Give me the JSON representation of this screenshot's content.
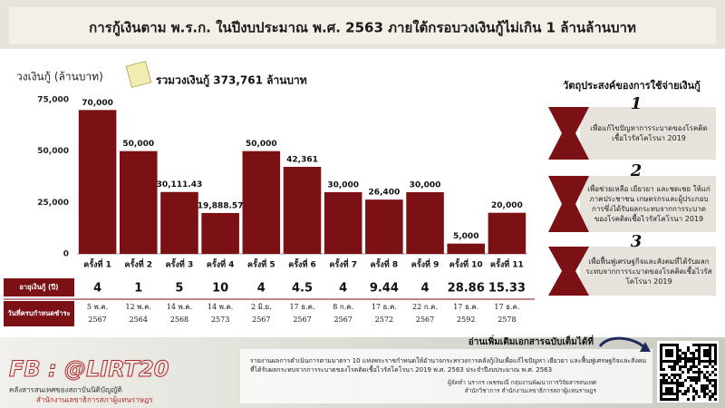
{
  "header": {
    "title": "การกู้เงินตาม พ.ร.ก. ในปีงบประมาณ พ.ศ. 2563 ภายใต้กรอบวงเงินกู้ไม่เกิน 1 ล้านล้านบาท"
  },
  "chart_data": {
    "type": "bar",
    "y_label": "วงเงินกู้ (ล้านบาท)",
    "annotation": "รวมวงเงินกู้ 373,761 ล้านบาท",
    "categories": [
      "ครั้งที่ 1",
      "ครั้งที่ 2",
      "ครั้งที่ 3",
      "ครั้งที่ 4",
      "ครั้งที่ 5",
      "ครั้งที่ 6",
      "ครั้งที่ 7",
      "ครั้งที่ 8",
      "ครั้งที่ 9",
      "ครั้งที่ 10",
      "ครั้งที่ 11"
    ],
    "values": [
      70000,
      50000,
      30111.43,
      19888.57,
      50000,
      42361,
      30000,
      26400,
      30000,
      5000,
      20000
    ],
    "value_labels": [
      "70,000",
      "50,000",
      "30,111.43",
      "19,888.57",
      "50,000",
      "42,361",
      "30,000",
      "26,400",
      "30,000",
      "5,000",
      "20,000"
    ],
    "color": "#7b1114",
    "ylim": [
      0,
      75000
    ],
    "yticks": [
      0,
      {
        "value": 25000,
        "label": "25,000"
      },
      {
        "value": 50000,
        "label": "50,000"
      },
      {
        "value": 75000,
        "label": "75,000"
      }
    ],
    "grid": false
  },
  "table": {
    "rows": [
      {
        "label": "อายุเงินกู้ (ปี)",
        "values": [
          4,
          1,
          5,
          10,
          4,
          4.5,
          4,
          9.44,
          4,
          28.86,
          15.33
        ]
      },
      {
        "label": "วันที่ครบกำหนดชำระ",
        "values": [
          [
            "5 พ.ค.",
            "2567"
          ],
          [
            "12 พ.ค.",
            "2564"
          ],
          [
            "14 พ.ค.",
            "2568"
          ],
          [
            "14 พ.ค.",
            "2573"
          ],
          [
            "2 มิ.ย.",
            "2567"
          ],
          [
            "17 ธ.ค.",
            "2567"
          ],
          [
            "8 ก.ค.",
            "2567"
          ],
          [
            "17 ธ.ค.",
            "2572"
          ],
          [
            "22 ก.ค.",
            "2567"
          ],
          [
            "17 ธ.ค.",
            "2592"
          ],
          [
            "17 ธ.ค.",
            "2578"
          ]
        ]
      }
    ]
  },
  "objectives": {
    "title": "วัตถุประสงค์ของการใช้จ่ายเงินกู้",
    "items": [
      {
        "number": "1",
        "text": "เพื่อแก้ไขปัญหาการระบาดของโรคติดเชื้อไวรัสโคโรนา 2019"
      },
      {
        "number": "2",
        "text": "เพื่อช่วยเหลือ เยียวยา และชดเชย ให้แก่ภาคประชาชน เกษตรกรและผู้ประกอบการซึ่งได้รับผลกระทบจากการระบาดของโรคติดเชื้อไวรัสโคโรนา 2019"
      },
      {
        "number": "3",
        "text": "เพื่อฟื้นฟูเศรษฐกิจและสังคมที่ได้รับผลกระทบจากการระบาดของโรคติดเชื้อไวรัสโคโรนา 2019"
      }
    ]
  },
  "footer": {
    "fb": "FB : @LIRT20",
    "org1": "คลังสารสนเทศของสถาบันนิติบัญญัติ",
    "org2": "สำนักงานเลขาธิการสภาผู้แทนราษฎร",
    "read_more": "อ่านเพิ่มเติมเอกสารฉบับเต็มได้ที่",
    "report": "รายงานผลการดำเนินการตามมาตรา 10 แห่งพระราชกำหนดให้อำนาจกระทรวงการคลังกู้เงินเพื่อแก้ไขปัญหา เยียวยา และฟื้นฟูเศรษฐกิจและสังคม ที่ได้รับผลกระทบจากการระบาดของโรคติดเชื้อไวรัสโคโรนา 2019 พ.ศ. 2563 ประจำปีงบประมาณ พ.ศ. 2563",
    "author1": "ผู้จัดทำ นรากร เพชรมณี กลุ่มงานพัฒนาการวิจัยสารสนเทศ",
    "author2": "สำนักวิชาการ สำนักงานเลขาธิการสภาผู้แทนราษฎร"
  }
}
